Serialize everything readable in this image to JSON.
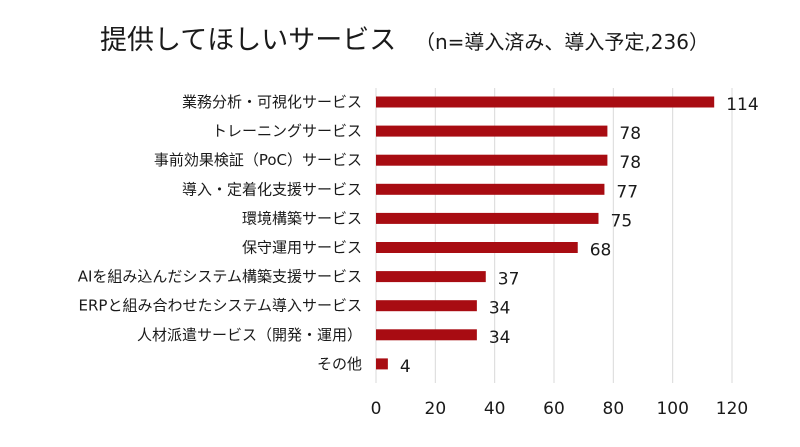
{
  "chart_data": {
    "type": "bar",
    "orientation": "horizontal",
    "title": "提供してほしいサービス",
    "subtitle": "（n=導入済み、導入予定,236）",
    "categories": [
      "業務分析・可視化サービス",
      "トレーニングサービス",
      "事前効果検証（PoC）サービス",
      "導入・定着化支援サービス",
      "環境構築サービス",
      "保守運用サービス",
      "AIを組み込んだシステム構築支援サービス",
      "ERPと組み合わせたシステム導入サービス",
      "人材派遣サービス（開発・運用）",
      "その他"
    ],
    "values": [
      114,
      78,
      78,
      77,
      75,
      68,
      37,
      34,
      34,
      4
    ],
    "xlim": [
      0,
      120
    ],
    "xticks": [
      0,
      20,
      40,
      60,
      80,
      100,
      120
    ],
    "grid": true,
    "bar_color": "#a80c12",
    "xlabel": "",
    "ylabel": ""
  }
}
